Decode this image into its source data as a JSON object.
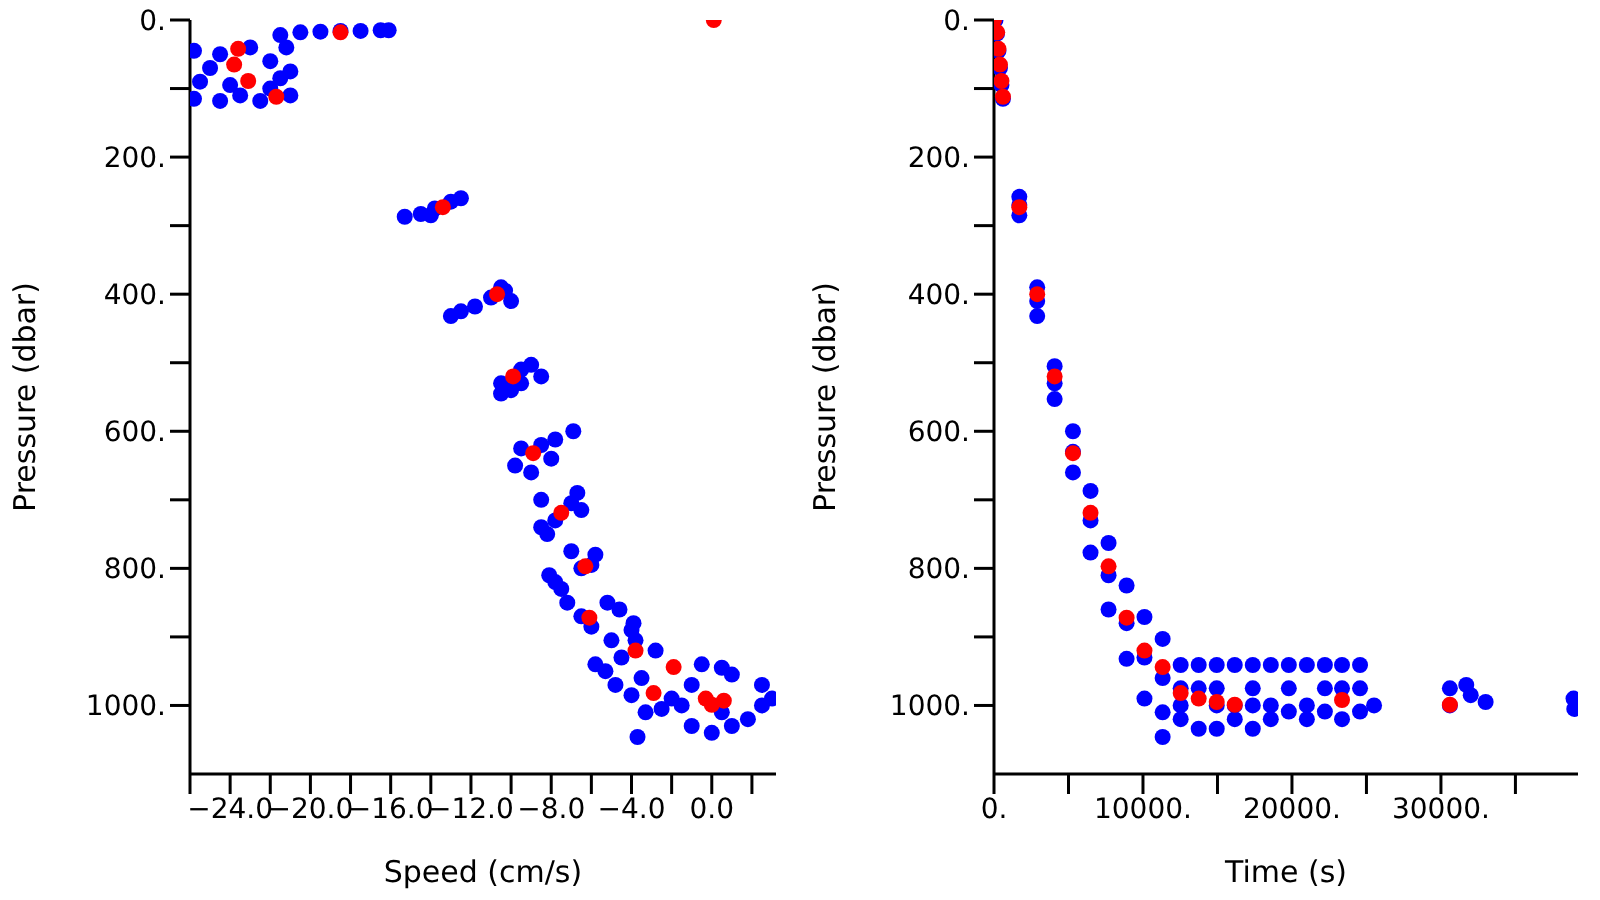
{
  "chart_data": [
    {
      "type": "scatter",
      "xlabel": "Speed (cm/s)",
      "ylabel": "Pressure (dbar)",
      "xlim": [
        -26,
        3.2
      ],
      "ylim": [
        1100,
        0
      ],
      "xticks": [
        {
          "value": -26,
          "label": null
        },
        {
          "value": -24,
          "label": "−24.0"
        },
        {
          "value": -22,
          "label": null
        },
        {
          "value": -20,
          "label": "−20.0"
        },
        {
          "value": -18,
          "label": null
        },
        {
          "value": -16,
          "label": "−16.0"
        },
        {
          "value": -14,
          "label": null
        },
        {
          "value": -12,
          "label": "−12.0"
        },
        {
          "value": -10,
          "label": null
        },
        {
          "value": -8,
          "label": "−8.0"
        },
        {
          "value": -6,
          "label": null
        },
        {
          "value": -4,
          "label": "−4.0"
        },
        {
          "value": -2,
          "label": null
        },
        {
          "value": 0,
          "label": "0.0"
        },
        {
          "value": 2,
          "label": null
        }
      ],
      "yticks": [
        {
          "value": 0,
          "label": "0."
        },
        {
          "value": 100,
          "label": null
        },
        {
          "value": 200,
          "label": "200."
        },
        {
          "value": 300,
          "label": null
        },
        {
          "value": 400,
          "label": "400."
        },
        {
          "value": 500,
          "label": null
        },
        {
          "value": 600,
          "label": "600."
        },
        {
          "value": 700,
          "label": null
        },
        {
          "value": 800,
          "label": "800."
        },
        {
          "value": 900,
          "label": null
        },
        {
          "value": 1000,
          "label": "1000."
        }
      ],
      "marker": "circle",
      "grid": false,
      "legend": false,
      "series": [
        {
          "color": "#0000ff",
          "x": [
            -21.5,
            -20.5,
            -19.5,
            -18.5,
            -17.5,
            -16.5,
            -16.1,
            -25.8,
            -25.8,
            -25,
            -24.5,
            -24,
            -23,
            -22,
            -21.5,
            -21,
            -22.5,
            -24.5,
            -21.2,
            -25.5,
            -23.5,
            -22,
            -21,
            -15.3,
            -14.5,
            -13.8,
            -13,
            -12.5,
            -14,
            -10.5,
            -11,
            -10,
            -10.3,
            -12.5,
            -13,
            -11.8,
            -10.5,
            -10.5,
            -9.5,
            -9,
            -8.5,
            -10,
            -9.5,
            -9.5,
            -8.5,
            -7.8,
            -6.9,
            -9.8,
            -9,
            -8,
            -8.5,
            -8.5,
            -6.7,
            -6.5,
            -8.2,
            -7.8,
            -7,
            -8.1,
            -7,
            -5.8,
            -6.5,
            -7.5,
            -7.8,
            -6,
            -7.2,
            -6.5,
            -5.2,
            -4.6,
            -4,
            -5,
            -6,
            -3.9,
            -5.3,
            -4.5,
            -3.8,
            -2.8,
            -4.8,
            -3.5,
            -5.8,
            -4,
            -3.7,
            -2,
            -1,
            -0.5,
            0.5,
            1,
            2.5,
            3,
            2.5,
            1.8,
            1,
            0,
            -1,
            -2.5,
            -3.3,
            -1.5,
            0.5
          ],
          "values": [
            22,
            18,
            17,
            16,
            16,
            15,
            15,
            45,
            115,
            70,
            50,
            95,
            40,
            60,
            85,
            110,
            118,
            118,
            40,
            90,
            110,
            100,
            75,
            287,
            283,
            275,
            265,
            260,
            285,
            390,
            405,
            410,
            395,
            425,
            432,
            418,
            530,
            545,
            510,
            503,
            520,
            540,
            530,
            625,
            620,
            612,
            600,
            650,
            660,
            640,
            700,
            740,
            690,
            715,
            750,
            730,
            705,
            810,
            775,
            780,
            800,
            830,
            820,
            795,
            850,
            870,
            850,
            860,
            890,
            905,
            885,
            880,
            950,
            930,
            905,
            920,
            970,
            960,
            940,
            985,
            1046,
            990,
            970,
            940,
            945,
            955,
            970,
            990,
            1000,
            1020,
            1030,
            1040,
            1030,
            1005,
            1010,
            1000,
            1010
          ]
        },
        {
          "color": "#ff0000",
          "x": [
            0.1,
            -18.5,
            -23.6,
            -23.8,
            -23.1,
            -21.7,
            -13.4,
            -10.7,
            -9.9,
            -8.9,
            -7.5,
            -6.3,
            -6.1,
            -3.8,
            -1.9,
            -2.9,
            -0.3,
            0.1,
            0.6,
            0
          ],
          "values": [
            0,
            18,
            42,
            65,
            89,
            112,
            273,
            400,
            520,
            632,
            719,
            797,
            872,
            920,
            944,
            982,
            990,
            null,
            993,
            999
          ]
        }
      ]
    },
    {
      "type": "scatter",
      "xlabel": "Time (s)",
      "ylabel": "Pressure (dbar)",
      "xlim": [
        0,
        39200
      ],
      "ylim": [
        1100,
        0
      ],
      "xticks": [
        {
          "value": 0,
          "label": "0."
        },
        {
          "value": 5000,
          "label": null
        },
        {
          "value": 10000,
          "label": "10000."
        },
        {
          "value": 15000,
          "label": null
        },
        {
          "value": 20000,
          "label": "20000."
        },
        {
          "value": 25000,
          "label": null
        },
        {
          "value": 30000,
          "label": "30000."
        },
        {
          "value": 35000,
          "label": null
        }
      ],
      "yticks": [
        {
          "value": 0,
          "label": "0."
        },
        {
          "value": 100,
          "label": null
        },
        {
          "value": 200,
          "label": "200."
        },
        {
          "value": 300,
          "label": null
        },
        {
          "value": 400,
          "label": "400."
        },
        {
          "value": 500,
          "label": null
        },
        {
          "value": 600,
          "label": "600."
        },
        {
          "value": 700,
          "label": null
        },
        {
          "value": 800,
          "label": "800."
        },
        {
          "value": 900,
          "label": null
        },
        {
          "value": 1000,
          "label": "1000."
        }
      ],
      "marker": "circle",
      "grid": false,
      "legend": false,
      "series": [
        {
          "color": "#0000ff",
          "x": [
            100,
            200,
            300,
            400,
            500,
            600,
            1700,
            1700,
            1700,
            2900,
            2900,
            2900,
            4070,
            4070,
            4070,
            5300,
            5300,
            5300,
            6480,
            6480,
            6480,
            7690,
            7690,
            7690,
            8900,
            8900,
            8900,
            10100,
            10100,
            10100,
            11320,
            11320,
            11320,
            11320,
            12530,
            12530,
            12530,
            12530,
            13740,
            13740,
            13740,
            14950,
            14950,
            14950,
            14950,
            16160,
            16160,
            16160,
            17370,
            17370,
            17370,
            17370,
            18580,
            18580,
            18580,
            19790,
            19790,
            19790,
            21000,
            21000,
            21000,
            22210,
            22210,
            22210,
            23360,
            23360,
            23360,
            24570,
            24570,
            24570,
            25510,
            30600,
            30600,
            31700,
            32000,
            33000,
            38900,
            38950
          ],
          "values": [
            0,
            20,
            45,
            70,
            95,
            115,
            258,
            270,
            285,
            390,
            410,
            432,
            505,
            530,
            553,
            600,
            630,
            660,
            687,
            730,
            777,
            763,
            810,
            860,
            825,
            880,
            932,
            871,
            930,
            990,
            903,
            960,
            1010,
            1046,
            941,
            975,
            1000,
            1020,
            941,
            975,
            1034,
            941,
            975,
            1000,
            1034,
            941,
            1000,
            1020,
            941,
            975,
            1000,
            1034,
            941,
            1000,
            1020,
            941,
            975,
            1009,
            941,
            1000,
            1020,
            941,
            975,
            1009,
            941,
            975,
            1020,
            941,
            975,
            1009,
            1000,
            975,
            1000,
            970,
            985,
            995,
            990,
            1005
          ]
        },
        {
          "color": "#ff0000",
          "x": [
            0,
            215,
            300,
            400,
            500,
            600,
            1700,
            2900,
            4070,
            5300,
            6480,
            7690,
            8900,
            10100,
            11320,
            12530,
            13740,
            14950,
            16160,
            23360,
            30600
          ],
          "values": [
            0,
            18,
            42,
            65,
            89,
            112,
            273,
            400,
            520,
            632,
            719,
            797,
            872,
            920,
            944,
            982,
            990,
            995,
            999,
            992,
            999
          ]
        }
      ]
    }
  ]
}
